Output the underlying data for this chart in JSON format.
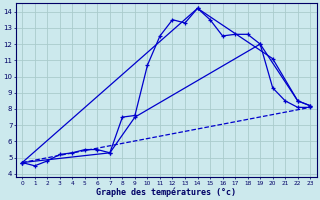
{
  "background_color": "#cce9ed",
  "grid_color": "#aacccc",
  "line_color": "#0000cc",
  "title": "Graphe des températures (°c)",
  "xlim": [
    -0.5,
    23.5
  ],
  "ylim": [
    3.8,
    14.5
  ],
  "xticks": [
    0,
    1,
    2,
    3,
    4,
    5,
    6,
    7,
    8,
    9,
    10,
    11,
    12,
    13,
    14,
    15,
    16,
    17,
    18,
    19,
    20,
    21,
    22,
    23
  ],
  "yticks": [
    4,
    5,
    6,
    7,
    8,
    9,
    10,
    11,
    12,
    13,
    14
  ],
  "series1": {
    "x": [
      0,
      1,
      2,
      3,
      4,
      5,
      6,
      7,
      8,
      9,
      10,
      11,
      12,
      13,
      14,
      15,
      16,
      17,
      18,
      19,
      20,
      21,
      22,
      23
    ],
    "y": [
      4.7,
      4.5,
      4.8,
      5.2,
      5.3,
      5.5,
      5.5,
      5.3,
      7.5,
      7.6,
      10.7,
      12.5,
      13.5,
      13.3,
      14.2,
      13.5,
      12.5,
      12.6,
      12.6,
      12.0,
      9.3,
      8.5,
      8.1,
      8.1
    ]
  },
  "series2_dashed": {
    "x": [
      0,
      23
    ],
    "y": [
      4.7,
      8.1
    ]
  },
  "series3": {
    "x": [
      0,
      14,
      20,
      22,
      23
    ],
    "y": [
      4.7,
      14.2,
      11.1,
      8.5,
      8.2
    ]
  },
  "series4": {
    "x": [
      0,
      7,
      9,
      19,
      22,
      23
    ],
    "y": [
      4.7,
      5.3,
      7.5,
      12.0,
      8.5,
      8.2
    ]
  }
}
